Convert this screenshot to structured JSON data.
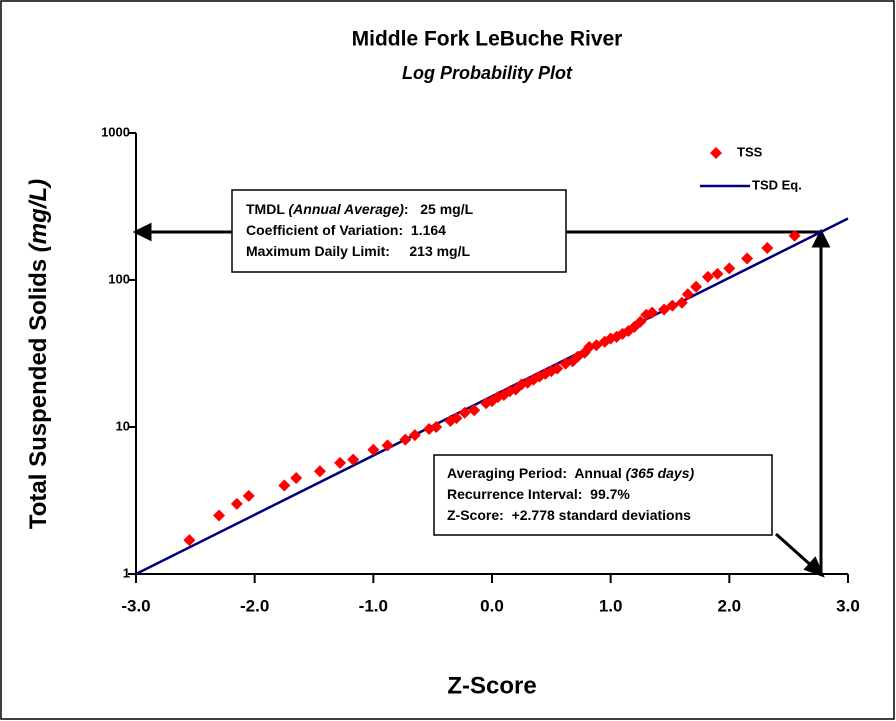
{
  "chart_data": {
    "type": "scatter",
    "title": "Middle Fork LeBuche River",
    "subtitle": "Log Probability Plot",
    "x_label": "Z-Score",
    "y_label": [
      "Total Suspended Solids ",
      "(mg/L)"
    ],
    "xlim": [
      -3,
      3
    ],
    "ylim": [
      1,
      1000
    ],
    "y_scale": "log",
    "xticks": [
      {
        "value": -3,
        "label": "-3.0"
      },
      {
        "value": -2,
        "label": "-2.0"
      },
      {
        "value": -1,
        "label": "-1.0"
      },
      {
        "value": 0,
        "label": "0.0"
      },
      {
        "value": 1,
        "label": "1.0"
      },
      {
        "value": 2,
        "label": "2.0"
      },
      {
        "value": 3,
        "label": "3.0"
      }
    ],
    "yticks": [
      1,
      10,
      100,
      1000
    ],
    "grid": false,
    "legend": "upper right",
    "series": [
      {
        "name": "TSS",
        "color": "#ff0000",
        "marker": "diamond",
        "x": [
          -2.55,
          -2.3,
          -2.15,
          -2.05,
          -1.75,
          -1.65,
          -1.45,
          -1.28,
          -1.17,
          -1.0,
          -0.88,
          -0.73,
          -0.65,
          -0.53,
          -0.47,
          -0.35,
          -0.3,
          -0.23,
          -0.15,
          -0.05,
          0.0,
          0.05,
          0.1,
          0.15,
          0.2,
          0.25,
          0.3,
          0.35,
          0.4,
          0.45,
          0.5,
          0.55,
          0.62,
          0.68,
          0.72,
          0.78,
          0.82,
          0.88,
          0.95,
          1.0,
          1.05,
          1.1,
          1.15,
          1.2,
          1.25,
          1.3,
          1.35,
          1.45,
          1.52,
          1.6,
          1.65,
          1.72,
          1.82,
          1.9,
          2.0,
          2.15,
          2.32,
          2.55
        ],
        "values": [
          1.7,
          2.5,
          3.0,
          3.4,
          4.0,
          4.5,
          5.0,
          5.7,
          6.0,
          7.0,
          7.5,
          8.2,
          8.8,
          9.7,
          10,
          11,
          11.5,
          12.5,
          13,
          14.5,
          15,
          16,
          16.5,
          17.5,
          18,
          19.5,
          20,
          21,
          22,
          23,
          24,
          25,
          27,
          28,
          30,
          32,
          35,
          36,
          38,
          40,
          41,
          43,
          45,
          48,
          52,
          58,
          60,
          63,
          67,
          70,
          80,
          90,
          105,
          110,
          120,
          140,
          165,
          200
        ]
      },
      {
        "name": "TSD Eq.",
        "color": "#000080",
        "marker": "line",
        "x": [
          -3,
          3
        ],
        "values": [
          1,
          262
        ]
      }
    ],
    "annotations": [
      {
        "rows": [
          [
            "TMDL ",
            "(Annual Average)",
            ":   25 mg/L"
          ],
          [
            "Coefficient of Variation:  1.164"
          ],
          [
            "Maximum Daily Limit:     213 mg/L"
          ]
        ]
      },
      {
        "rows": [
          [
            "Averaging Period:  Annual ",
            "(365 days)"
          ],
          [
            "Recurrence Interval:  99.7%"
          ],
          [
            "Z-Score:  +2.778 standard deviations"
          ]
        ]
      }
    ]
  }
}
